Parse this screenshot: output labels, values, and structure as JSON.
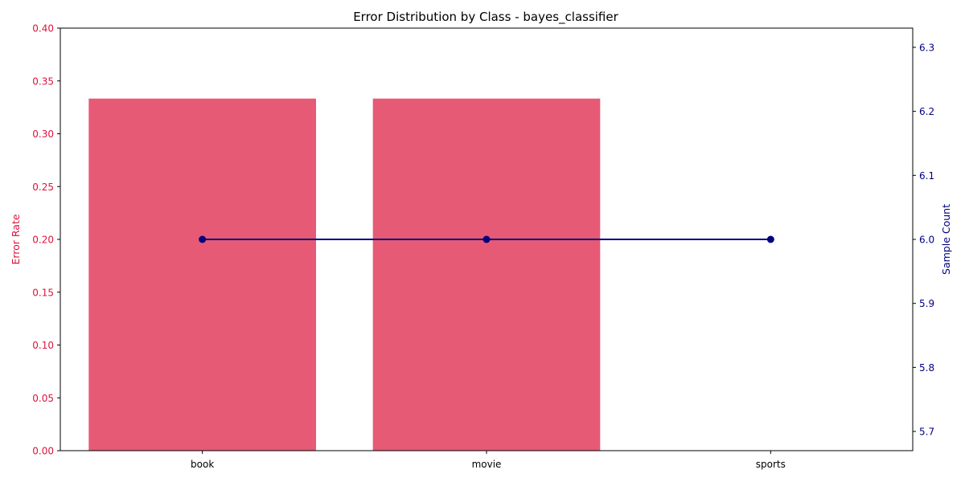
{
  "chart_data": {
    "type": "bar+line",
    "title": "Error Distribution by Class - bayes_classifier",
    "categories": [
      "book",
      "movie",
      "sports"
    ],
    "bar_series": {
      "name": "Error Rate",
      "values": [
        0.3333,
        0.3333,
        0.0
      ],
      "color": "#dc143c",
      "opacity": 0.7
    },
    "line_series": {
      "name": "Sample Count",
      "values": [
        6,
        6,
        6
      ],
      "color": "#000080"
    },
    "y_left": {
      "label": "Error Rate",
      "ylim": [
        0,
        0.4
      ],
      "ticks": [
        0.0,
        0.05,
        0.1,
        0.15,
        0.2,
        0.25,
        0.3,
        0.35,
        0.4
      ],
      "tick_labels": [
        "0.00",
        "0.05",
        "0.10",
        "0.15",
        "0.20",
        "0.25",
        "0.30",
        "0.35",
        "0.40"
      ],
      "color": "#dc143c"
    },
    "y_right": {
      "label": "Sample Count",
      "ylim": [
        5.67,
        6.33
      ],
      "ticks": [
        5.7,
        5.8,
        5.9,
        6.0,
        6.1,
        6.2,
        6.3
      ],
      "tick_labels": [
        "5.7",
        "5.8",
        "5.9",
        "6.0",
        "6.1",
        "6.2",
        "6.3"
      ],
      "color": "#000080"
    },
    "xlabel": "",
    "grid": false,
    "legend": "none"
  }
}
